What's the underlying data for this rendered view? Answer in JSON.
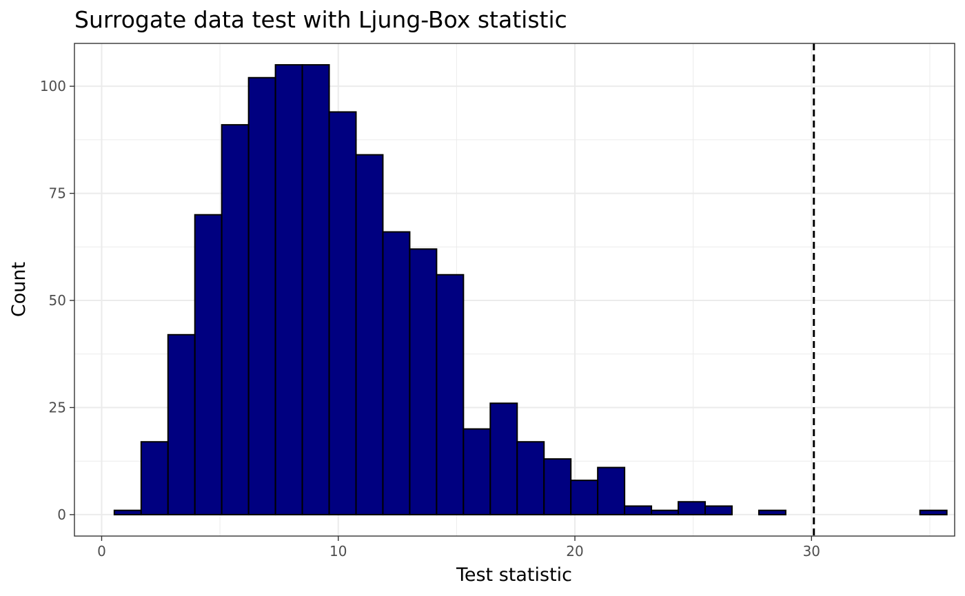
{
  "chart_data": {
    "type": "bar",
    "title": "Surrogate data test with Ljung-Box statistic",
    "xlabel": "Test statistic",
    "ylabel": "Count",
    "xlim": [
      -1.15,
      36.05
    ],
    "ylim": [
      -5,
      110
    ],
    "x_ticks": [
      0,
      10,
      20,
      30
    ],
    "y_ticks": [
      0,
      25,
      50,
      75,
      100
    ],
    "bin_width": 1.135,
    "bin_start": 0.535,
    "values": [
      1,
      17,
      42,
      70,
      91,
      102,
      105,
      105,
      94,
      84,
      66,
      62,
      56,
      20,
      26,
      17,
      13,
      8,
      11,
      2,
      1,
      3,
      2,
      0,
      1,
      0,
      0,
      0,
      0,
      0,
      1
    ],
    "observed_statistic": 30.1,
    "grid": true,
    "legend": "none",
    "colors": {
      "bar_fill": "#000080",
      "bar_stroke": "#000000",
      "vline": "#000000"
    }
  }
}
